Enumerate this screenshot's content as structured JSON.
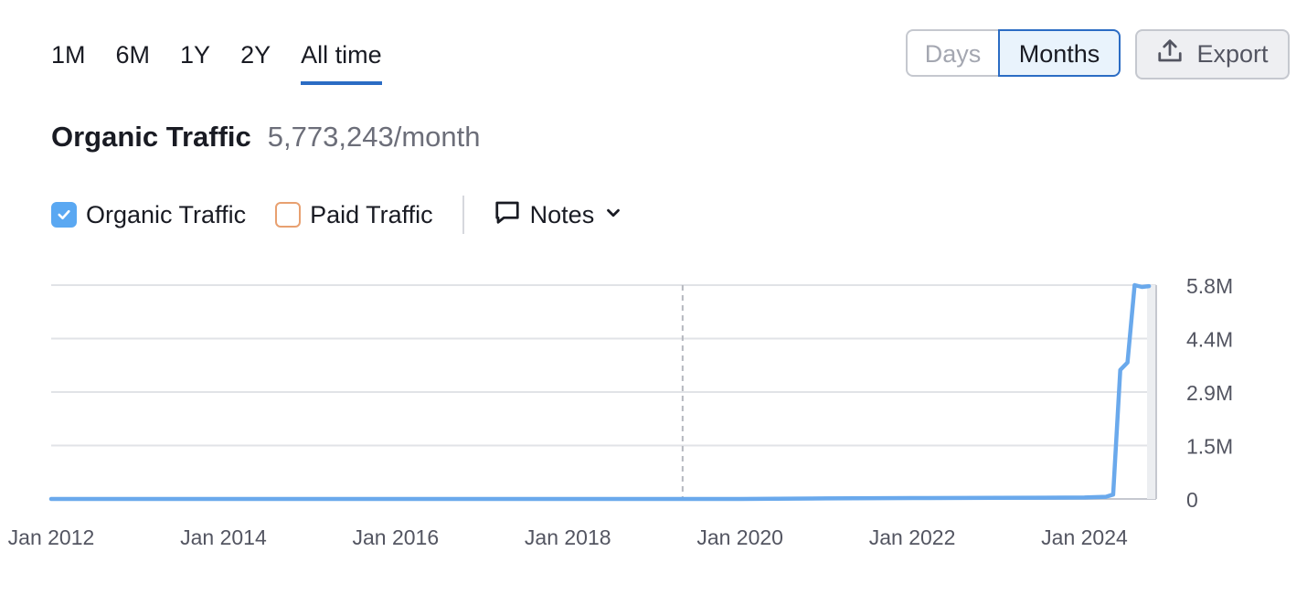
{
  "period_tabs": [
    "1M",
    "6M",
    "1Y",
    "2Y",
    "All time"
  ],
  "active_period": "All time",
  "granularity": {
    "days": "Days",
    "months": "Months",
    "selected": "Months"
  },
  "export_label": "Export",
  "metric": {
    "title": "Organic Traffic",
    "value": "5,773,243/month"
  },
  "legend": {
    "organic": {
      "label": "Organic Traffic",
      "checked": true,
      "color": "#5aa8f2"
    },
    "paid": {
      "label": "Paid Traffic",
      "checked": false,
      "color": "#e8a070"
    },
    "notes_label": "Notes"
  },
  "chart_data": {
    "type": "line",
    "series": [
      {
        "name": "Organic Traffic",
        "color": "#6aa9ec",
        "points": [
          [
            "2012-01",
            0
          ],
          [
            "2014-01",
            0
          ],
          [
            "2016-01",
            0
          ],
          [
            "2018-01",
            0
          ],
          [
            "2019-01",
            0
          ],
          [
            "2020-01",
            0
          ],
          [
            "2021-01",
            15000
          ],
          [
            "2022-01",
            25000
          ],
          [
            "2023-01",
            30000
          ],
          [
            "2024-01",
            40000
          ],
          [
            "2024-04",
            60000
          ],
          [
            "2024-05",
            120000
          ],
          [
            "2024-06",
            3500000
          ],
          [
            "2024-07",
            3700000
          ],
          [
            "2024-08",
            5800000
          ],
          [
            "2024-09",
            5750000
          ],
          [
            "2024-10",
            5773243
          ]
        ]
      }
    ],
    "x_ticks": [
      "Jan 2012",
      "Jan 2014",
      "Jan 2016",
      "Jan 2018",
      "Jan 2020",
      "Jan 2022",
      "Jan 2024"
    ],
    "y_ticks": [
      "0",
      "1.5M",
      "2.9M",
      "4.4M",
      "5.8M"
    ],
    "y_tick_values": [
      0,
      1450000,
      2900000,
      4350000,
      5800000
    ],
    "ylim": [
      0,
      5800000
    ],
    "xlim": [
      "2012-01",
      "2024-11"
    ],
    "marker_date": "2019-05",
    "grid": true
  }
}
